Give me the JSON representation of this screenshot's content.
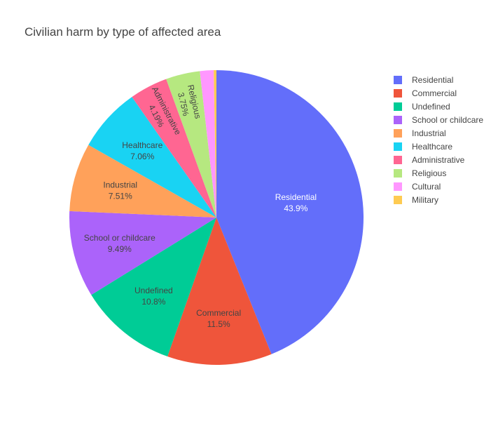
{
  "chart_data": {
    "type": "pie",
    "title": "Civilian harm by type of affected area",
    "legend_position": "right",
    "slices": [
      {
        "label": "Residential",
        "percent": 43.9,
        "percent_text": "43.9%",
        "color": "#636efa",
        "text_color": "#ffffff",
        "show_label": true,
        "label_mode": "horizontal"
      },
      {
        "label": "Commercial",
        "percent": 11.5,
        "percent_text": "11.5%",
        "color": "#ef553b",
        "text_color": "#444444",
        "show_label": true,
        "label_mode": "horizontal"
      },
      {
        "label": "Undefined",
        "percent": 10.8,
        "percent_text": "10.8%",
        "color": "#00cc96",
        "text_color": "#444444",
        "show_label": true,
        "label_mode": "horizontal"
      },
      {
        "label": "School or childcare",
        "percent": 9.49,
        "percent_text": "9.49%",
        "color": "#ab63fa",
        "text_color": "#444444",
        "show_label": true,
        "label_mode": "horizontal"
      },
      {
        "label": "Industrial",
        "percent": 7.51,
        "percent_text": "7.51%",
        "color": "#ffa15a",
        "text_color": "#444444",
        "show_label": true,
        "label_mode": "horizontal"
      },
      {
        "label": "Healthcare",
        "percent": 7.06,
        "percent_text": "7.06%",
        "color": "#19d3f3",
        "text_color": "#444444",
        "show_label": true,
        "label_mode": "horizontal"
      },
      {
        "label": "Administrative",
        "percent": 4.19,
        "percent_text": "4.19%",
        "color": "#ff6692",
        "text_color": "#444444",
        "show_label": true,
        "label_mode": "radial"
      },
      {
        "label": "Religious",
        "percent": 3.75,
        "percent_text": "3.75%",
        "color": "#b6e880",
        "text_color": "#444444",
        "show_label": true,
        "label_mode": "radial"
      },
      {
        "label": "Cultural",
        "percent": 1.5,
        "percent_text": "",
        "color": "#ff97ff",
        "text_color": "#444444",
        "show_label": false,
        "label_mode": "none"
      },
      {
        "label": "Military",
        "percent": 0.3,
        "percent_text": "",
        "color": "#fecb52",
        "text_color": "#444444",
        "show_label": false,
        "label_mode": "none"
      }
    ]
  }
}
